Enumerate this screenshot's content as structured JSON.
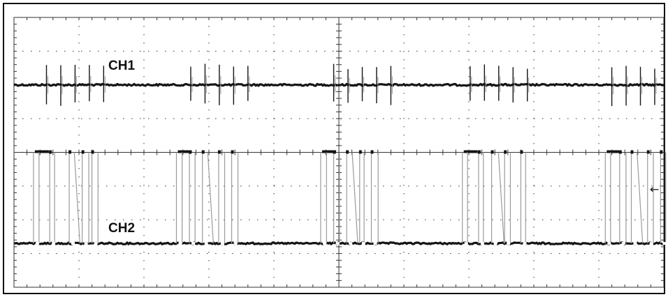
{
  "chart_data": {
    "type": "line",
    "grid": true,
    "grid_divisions": {
      "x": 10,
      "y": 8
    },
    "minor_ticks_per_division": 5,
    "colors": {
      "background": "#ffffff",
      "trace": "#141414",
      "transition": "#9a9a9a",
      "grid": "#333333"
    },
    "series": [
      {
        "name": "CH1",
        "description_kind": "spikes on baseline",
        "baseline_div": 2.0,
        "spike_amplitude_div": 0.55,
        "bursts_div": [
          [
            0.5,
            0.72,
            0.94,
            1.16,
            1.38
          ],
          [
            2.72,
            2.94,
            3.16,
            3.38,
            3.6
          ],
          [
            4.92,
            5.14,
            5.36,
            5.58,
            5.8
          ],
          [
            7.02,
            7.24,
            7.46,
            7.68,
            7.9
          ],
          [
            9.2,
            9.42,
            9.64,
            9.86,
            10.08
          ]
        ]
      },
      {
        "name": "CH2",
        "description_kind": "pulse bursts",
        "low_div": 6.7,
        "high_div": 4.0,
        "bursts_div": [
          {
            "start": 0.3,
            "pulses": [
              0.3,
              0.55,
              0.85,
              1.05,
              1.2
            ]
          },
          {
            "start": 2.5,
            "pulses": [
              2.5,
              2.7,
              2.9,
              3.15,
              3.35
            ]
          },
          {
            "start": 4.72,
            "pulses": [
              4.72,
              4.92,
              5.12,
              5.32,
              5.5
            ]
          },
          {
            "start": 6.9,
            "pulses": [
              6.9,
              7.15,
              7.35,
              7.55,
              7.8
            ]
          },
          {
            "start": 9.1,
            "pulses": [
              9.1,
              9.32,
              9.5,
              9.75,
              9.95
            ]
          }
        ]
      }
    ],
    "ground_marker": {
      "channel": "CH2",
      "level_div": 5.0,
      "symbol": "←"
    }
  }
}
